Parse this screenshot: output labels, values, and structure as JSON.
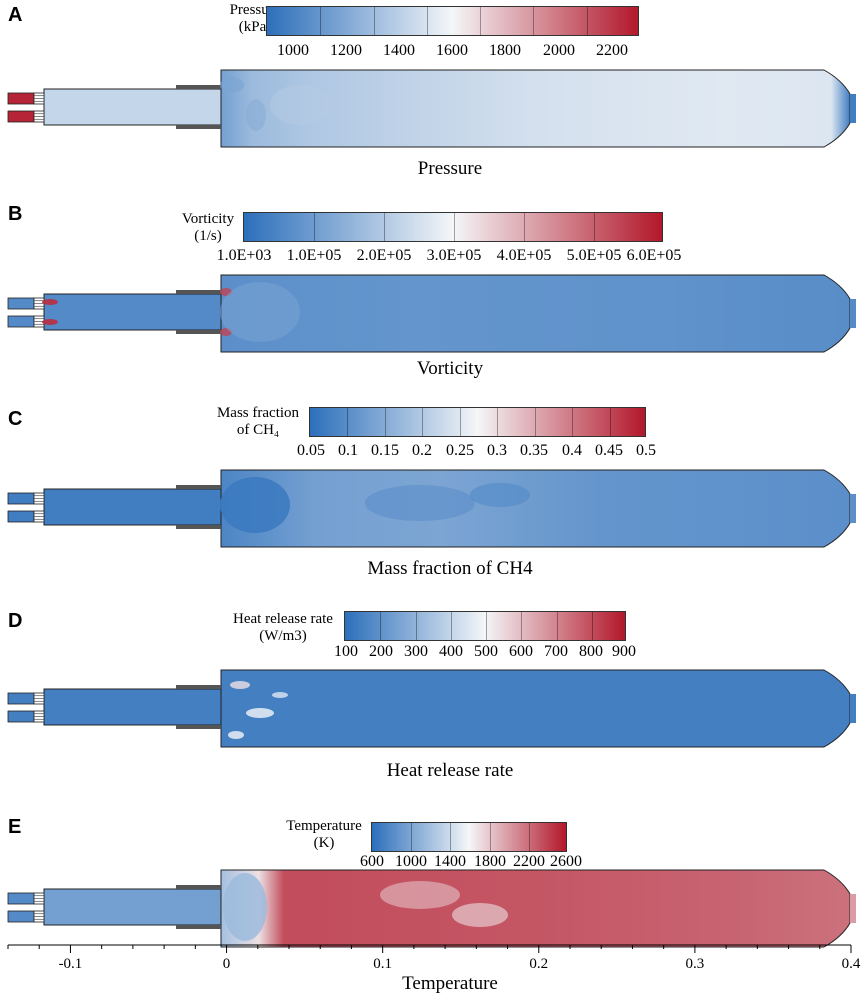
{
  "colors": {
    "cold": "#2c6fbb",
    "mid": "#f4f6f8",
    "hot": "#b2182b",
    "outline": "#222222"
  },
  "panels": [
    {
      "letter": "A",
      "caption": "Pressure",
      "colorbar": {
        "title": [
          "Pressure",
          "(kPa)"
        ],
        "ticks": [
          "1000",
          "1200",
          "1400",
          "1600",
          "1800",
          "2000",
          "2200"
        ]
      }
    },
    {
      "letter": "B",
      "caption": "Vorticity",
      "colorbar": {
        "title": [
          "Vorticity",
          "(1/s)"
        ],
        "ticks": [
          "1.0E+03",
          "1.0E+05",
          "2.0E+05",
          "3.0E+05",
          "4.0E+05",
          "5.0E+05",
          "6.0E+05"
        ]
      }
    },
    {
      "letter": "C",
      "caption": "Mass fraction of CH4",
      "colorbar": {
        "title": [
          "Mass fraction",
          "of CH₄"
        ],
        "ticks": [
          "0.05",
          "0.1",
          "0.15",
          "0.2",
          "0.25",
          "0.3",
          "0.35",
          "0.4",
          "0.45",
          "0.5"
        ]
      }
    },
    {
      "letter": "D",
      "caption": "Heat release rate",
      "colorbar": {
        "title": [
          "Heat release rate",
          "(W/m3)"
        ],
        "ticks": [
          "100",
          "200",
          "300",
          "400",
          "500",
          "600",
          "700",
          "800",
          "900"
        ]
      }
    },
    {
      "letter": "E",
      "caption": "Temperature",
      "colorbar": {
        "title": [
          "Temperature",
          "(K)"
        ],
        "ticks": [
          "600",
          "1000",
          "1400",
          "1800",
          "2200",
          "2600"
        ]
      }
    }
  ],
  "axis": {
    "ticks": [
      "-0.1",
      "0",
      "0.1",
      "0.2",
      "0.3",
      "0.4"
    ],
    "values": [
      -0.1,
      0,
      0.1,
      0.2,
      0.3,
      0.4
    ],
    "range": [
      -0.14,
      0.4
    ]
  }
}
